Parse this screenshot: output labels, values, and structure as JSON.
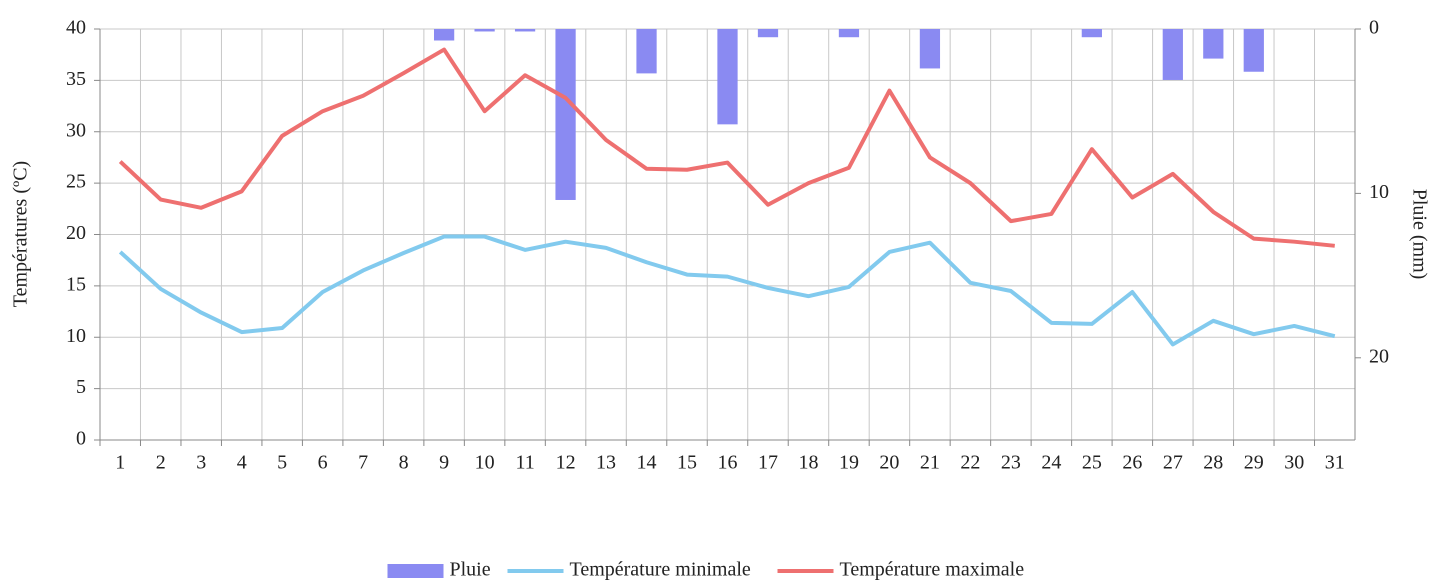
{
  "chart_data": {
    "type": "combo",
    "y_label": "Températures (ºC)",
    "y2_label": "Pluie (mm)",
    "categories": [
      1,
      2,
      3,
      4,
      5,
      6,
      7,
      8,
      9,
      10,
      11,
      12,
      13,
      14,
      15,
      16,
      17,
      18,
      19,
      20,
      21,
      22,
      23,
      24,
      25,
      26,
      27,
      28,
      29,
      30,
      31
    ],
    "ylim": [
      0,
      40
    ],
    "yticks": [
      0,
      5,
      10,
      15,
      20,
      25,
      30,
      35,
      40
    ],
    "y2lim": [
      0,
      25
    ],
    "y2ticks": [
      0,
      10,
      20
    ],
    "y2_reversed": true,
    "grid": true,
    "legend": "bottom",
    "series": [
      {
        "name": "Pluie",
        "type": "bar",
        "axis": "y2",
        "color": "#8a8af2",
        "values": [
          0,
          0,
          0,
          0,
          0,
          0,
          0,
          0,
          0.7,
          0.15,
          0.15,
          10.4,
          0,
          2.7,
          0,
          5.8,
          0.5,
          0,
          0.5,
          0,
          2.4,
          0,
          0,
          0,
          0.5,
          0,
          3.1,
          1.8,
          2.6,
          0,
          0
        ]
      },
      {
        "name": "Température minimale",
        "type": "line",
        "color": "#82caee",
        "values": [
          18.3,
          14.7,
          12.4,
          10.5,
          10.9,
          14.4,
          16.5,
          18.2,
          19.8,
          19.8,
          18.5,
          19.3,
          18.7,
          17.3,
          16.1,
          15.9,
          14.8,
          14.0,
          14.9,
          18.3,
          19.2,
          15.3,
          14.5,
          11.4,
          11.3,
          14.4,
          9.3,
          11.6,
          10.3,
          11.1,
          10.1
        ]
      },
      {
        "name": "Température maximale",
        "type": "line",
        "color": "#ee7070",
        "values": [
          27.1,
          23.4,
          22.6,
          24.2,
          29.6,
          32,
          33.5,
          35.7,
          38,
          32,
          35.5,
          33.3,
          29.2,
          26.4,
          26.3,
          27,
          22.9,
          25,
          26.5,
          34,
          27.5,
          25,
          21.3,
          22,
          28.3,
          23.6,
          25.9,
          22.2,
          19.6,
          19.3,
          18.9
        ]
      }
    ]
  }
}
